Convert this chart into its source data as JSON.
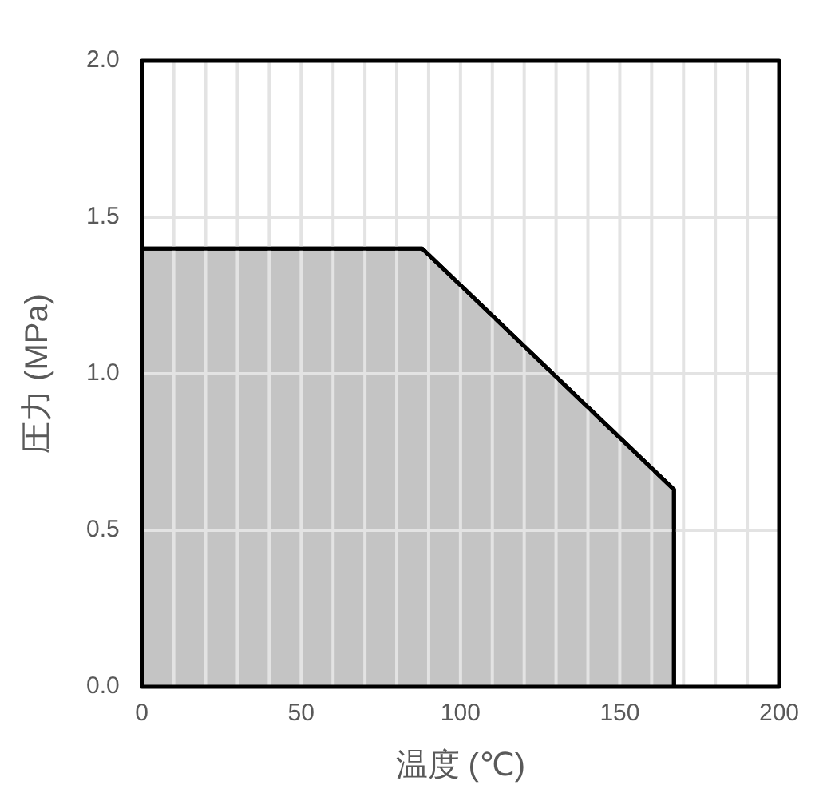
{
  "chart_data": {
    "type": "area",
    "xlabel": "温度 (℃)",
    "ylabel": "圧力 (MPa)",
    "series": [
      {
        "color": "#c4c4c4",
        "x": [
          0,
          88,
          167,
          167
        ],
        "values": [
          1.4,
          1.4,
          0.63,
          0
        ]
      }
    ],
    "xlim": [
      0,
      200
    ],
    "xticks": [
      0,
      {
        "value": 10,
        "label": null
      },
      {
        "value": 20,
        "label": null
      },
      {
        "value": 30,
        "label": null
      },
      {
        "value": 40,
        "label": null
      },
      50,
      {
        "value": 60,
        "label": null
      },
      {
        "value": 70,
        "label": null
      },
      {
        "value": 80,
        "label": null
      },
      {
        "value": 90,
        "label": null
      },
      100,
      {
        "value": 110,
        "label": null
      },
      {
        "value": 120,
        "label": null
      },
      {
        "value": 130,
        "label": null
      },
      {
        "value": 140,
        "label": null
      },
      150,
      {
        "value": 160,
        "label": null
      },
      {
        "value": 170,
        "label": null
      },
      {
        "value": 180,
        "label": null
      },
      {
        "value": 190,
        "label": null
      },
      200
    ],
    "ylim": [
      0,
      2
    ],
    "yticks": [
      {
        "value": 0,
        "label": "0.0"
      },
      {
        "value": 0.5,
        "label": "0.5"
      },
      {
        "value": 1,
        "label": "1.0"
      },
      {
        "value": 1.5,
        "label": "1.5"
      },
      {
        "value": 2,
        "label": "2.0"
      }
    ],
    "grid": true,
    "legend": false
  }
}
